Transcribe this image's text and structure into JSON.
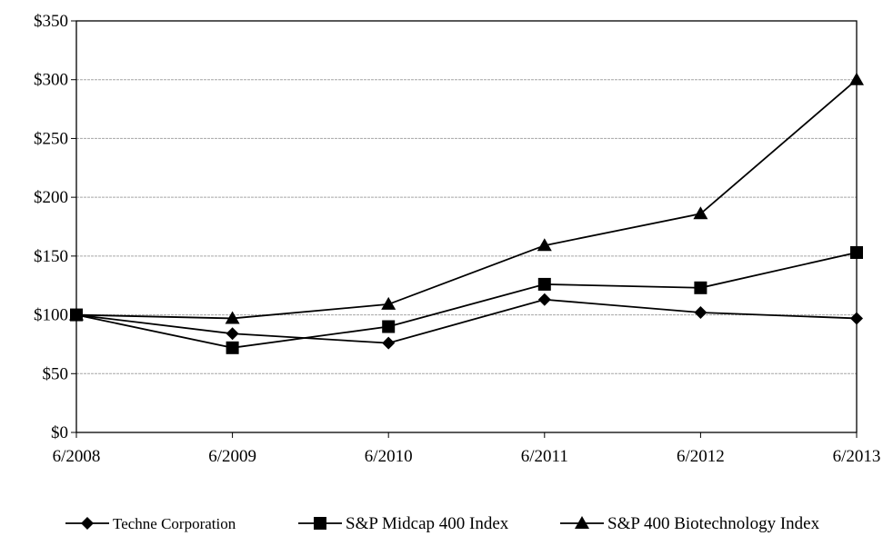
{
  "chart_data": {
    "type": "line",
    "title": "",
    "xlabel": "",
    "ylabel": "",
    "x": [
      "6/2008",
      "6/2009",
      "6/2010",
      "6/2011",
      "6/2012",
      "6/2013"
    ],
    "ylim": [
      0,
      350
    ],
    "yticks": [
      0,
      50,
      100,
      150,
      200,
      250,
      300,
      350
    ],
    "ytick_labels": [
      "$0",
      "$50",
      "$100",
      "$150",
      "$200",
      "$250",
      "$300",
      "$350"
    ],
    "grid": "horizontal",
    "legend_position": "bottom",
    "series": [
      {
        "name": "Techne Corporation",
        "marker": "diamond",
        "values": [
          100,
          84,
          76,
          113,
          102,
          97
        ]
      },
      {
        "name": "S&P Midcap 400 Index",
        "marker": "square",
        "values": [
          100,
          72,
          90,
          126,
          123,
          153
        ]
      },
      {
        "name": "S&P 400 Biotechnology Index",
        "marker": "triangle",
        "values": [
          100,
          97,
          109,
          159,
          186,
          300
        ]
      }
    ]
  }
}
